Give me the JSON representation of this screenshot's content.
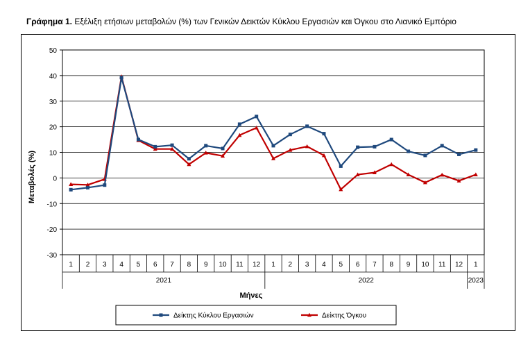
{
  "chart_data": {
    "type": "line",
    "title_bold": "Γράφημα 1.",
    "title": "Εξέλιξη ετήσιων μεταβολών (%) των Γενικών Δεικτών Κύκλου Εργασιών και Όγκου στο Λιανικό Εμπόριο",
    "xlabel": "Μήνες",
    "ylabel": "Μεταβολές (%)",
    "ylim": [
      -30,
      50
    ],
    "yticks": [
      "-30",
      "-20",
      "-10",
      "0",
      "10",
      "20",
      "30",
      "40",
      "50"
    ],
    "grid": true,
    "legend_position": "bottom",
    "categories": [
      "1",
      "2",
      "3",
      "4",
      "5",
      "6",
      "7",
      "8",
      "9",
      "10",
      "11",
      "12",
      "1",
      "2",
      "3",
      "4",
      "5",
      "6",
      "7",
      "8",
      "9",
      "10",
      "11",
      "12",
      "1"
    ],
    "year_groups": [
      {
        "label": "2021",
        "span": 12
      },
      {
        "label": "2022",
        "span": 12
      },
      {
        "label": "2023",
        "span": 1
      }
    ],
    "series": [
      {
        "name": "Δείκτης Κύκλου Εργασιών",
        "color": "#1f497d",
        "marker": "square",
        "values": [
          -4.6,
          -3.8,
          -2.8,
          39.2,
          15.0,
          12.2,
          12.8,
          7.5,
          12.6,
          11.5,
          21.0,
          24.0,
          12.6,
          17.0,
          20.2,
          17.3,
          4.6,
          12.0,
          12.2,
          15.0,
          10.4,
          8.8,
          12.6,
          9.2,
          10.9
        ]
      },
      {
        "name": "Δείκτης Όγκου",
        "color": "#c00000",
        "marker": "triangle",
        "values": [
          -2.5,
          -2.7,
          -0.5,
          39.6,
          14.7,
          11.3,
          11.3,
          5.3,
          9.8,
          8.6,
          16.7,
          19.6,
          7.6,
          10.9,
          12.3,
          8.8,
          -4.5,
          1.3,
          2.1,
          5.3,
          1.3,
          -1.8,
          1.2,
          -1.1,
          1.3
        ]
      }
    ]
  }
}
